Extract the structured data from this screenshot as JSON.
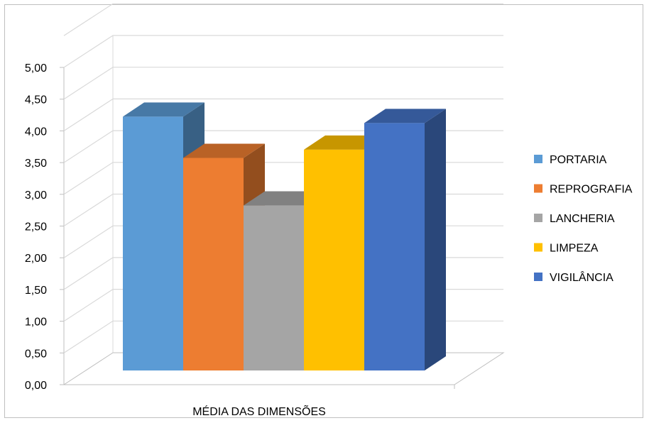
{
  "chart_data": {
    "type": "bar",
    "categories": [
      "MÉDIA DAS DIMENSÕES"
    ],
    "series": [
      {
        "name": "PORTARIA",
        "values": [
          4.0
        ],
        "color": "#5B9BD5"
      },
      {
        "name": "REPROGRAFIA",
        "values": [
          3.35
        ],
        "color": "#ED7D31"
      },
      {
        "name": "LANCHERIA",
        "values": [
          2.6
        ],
        "color": "#A5A5A5"
      },
      {
        "name": "LIMPEZA",
        "values": [
          3.48
        ],
        "color": "#FFC000"
      },
      {
        "name": "VIGILÂNCIA",
        "values": [
          3.9
        ],
        "color": "#4472C4"
      }
    ],
    "yticks": [
      "0,00",
      "0,50",
      "1,00",
      "1,50",
      "2,00",
      "2,50",
      "3,00",
      "3,50",
      "4,00",
      "4,50",
      "5,00"
    ],
    "ylim": [
      0,
      5
    ],
    "grid": true,
    "style": "3d-clustered-column",
    "legend_position": "right",
    "title": "",
    "xlabel": "",
    "ylabel": ""
  }
}
